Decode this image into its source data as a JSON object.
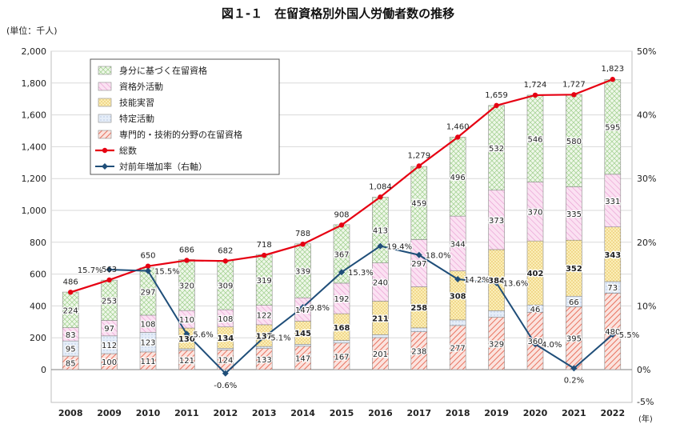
{
  "chart_data": {
    "type": "bar",
    "title": "図１-１　在留資格別外国人労働者数の推移",
    "ylabel": "(単位：千人)",
    "xunit": "(年)",
    "categories": [
      "2008",
      "2009",
      "2010",
      "2011",
      "2012",
      "2013",
      "2014",
      "2015",
      "2016",
      "2017",
      "2018",
      "2019",
      "2020",
      "2021",
      "2022"
    ],
    "ylim": [
      0,
      2000
    ],
    "y_ticks": [
      "0",
      "200",
      "400",
      "600",
      "800",
      "1,000",
      "1,200",
      "1,400",
      "1,600",
      "1,800",
      "2,000"
    ],
    "y2lim": [
      -5,
      50
    ],
    "y2_ticks": [
      "-5%",
      "0%",
      "10%",
      "20%",
      "30%",
      "40%",
      "50%"
    ],
    "grid": true,
    "legend_position": "top-left",
    "series": [
      {
        "name": "専門的・技術的分野の在留資格",
        "stack": true,
        "values": [
          85,
          100,
          111,
          121,
          124,
          133,
          147,
          167,
          201,
          238,
          277,
          329,
          360,
          395,
          480
        ],
        "labels": [
          "85",
          "100",
          "111",
          "121",
          "124",
          "133",
          "147",
          "167",
          "201",
          "238",
          "277",
          "329",
          "360",
          "395",
          "480"
        ],
        "color": "#e8725f",
        "pattern": "diag-red"
      },
      {
        "name": "特定活動",
        "stack": true,
        "values": [
          95,
          112,
          123,
          10,
          10,
          12,
          12,
          16,
          18,
          24,
          35,
          41,
          46,
          66,
          73
        ],
        "labels": [
          "95",
          "112",
          "123",
          "",
          "",
          "",
          "",
          "",
          "",
          "",
          "",
          "",
          "46",
          "66",
          "73"
        ],
        "color": "#7f9fcf",
        "pattern": "light-blue"
      },
      {
        "name": "技能実習",
        "stack": true,
        "values": [
          0,
          0,
          0,
          130,
          134,
          137,
          145,
          168,
          211,
          258,
          308,
          384,
          402,
          352,
          343
        ],
        "labels": [
          "",
          "",
          "",
          "130",
          "134",
          "137",
          "145",
          "168",
          "211",
          "258",
          "308",
          "384",
          "402",
          "352",
          "343"
        ],
        "color": "#f3d37a",
        "pattern": "dots-yellow"
      },
      {
        "name": "資格外活動",
        "stack": true,
        "values": [
          83,
          97,
          108,
          110,
          108,
          122,
          147,
          192,
          240,
          297,
          344,
          373,
          370,
          335,
          331
        ],
        "labels": [
          "83",
          "97",
          "108",
          "110",
          "108",
          "122",
          "147",
          "192",
          "240",
          "297",
          "344",
          "373",
          "370",
          "335",
          "331"
        ],
        "color": "#e79ad0",
        "pattern": "pink"
      },
      {
        "name": "身分に基づく在留資格",
        "stack": true,
        "values": [
          224,
          253,
          297,
          320,
          309,
          319,
          339,
          367,
          413,
          459,
          496,
          532,
          546,
          580,
          595
        ],
        "labels": [
          "224",
          "253",
          "297",
          "320",
          "309",
          "319",
          "339",
          "367",
          "413",
          "459",
          "496",
          "532",
          "546",
          "580",
          "595"
        ],
        "color": "#b7d9a7",
        "pattern": "cross-green"
      },
      {
        "name": "総数",
        "type": "line",
        "axis": "left",
        "color": "#e60012",
        "values": [
          486,
          563,
          650,
          686,
          682,
          718,
          788,
          908,
          1084,
          1279,
          1460,
          1659,
          1724,
          1727,
          1823
        ],
        "labels": [
          "486",
          "563",
          "650",
          "686",
          "682",
          "718",
          "788",
          "908",
          "1,084",
          "1,279",
          "1,460",
          "1,659",
          "1,724",
          "1,727",
          "1,823"
        ]
      },
      {
        "name": "対前年増加率（右軸）",
        "type": "line",
        "axis": "right",
        "color": "#1f4e79",
        "values": [
          null,
          15.7,
          15.5,
          5.6,
          -0.6,
          5.1,
          9.8,
          15.3,
          19.4,
          18.0,
          14.2,
          13.6,
          4.0,
          0.2,
          5.5
        ],
        "labels": [
          "",
          "15.7%",
          "15.5%",
          "5.6%",
          "-0.6%",
          "5.1%",
          "9.8%",
          "15.3%",
          "19.4%",
          "18.0%",
          "14.2%",
          "13.6%",
          "4.0%",
          "0.2%",
          "5.5%"
        ]
      }
    ]
  }
}
